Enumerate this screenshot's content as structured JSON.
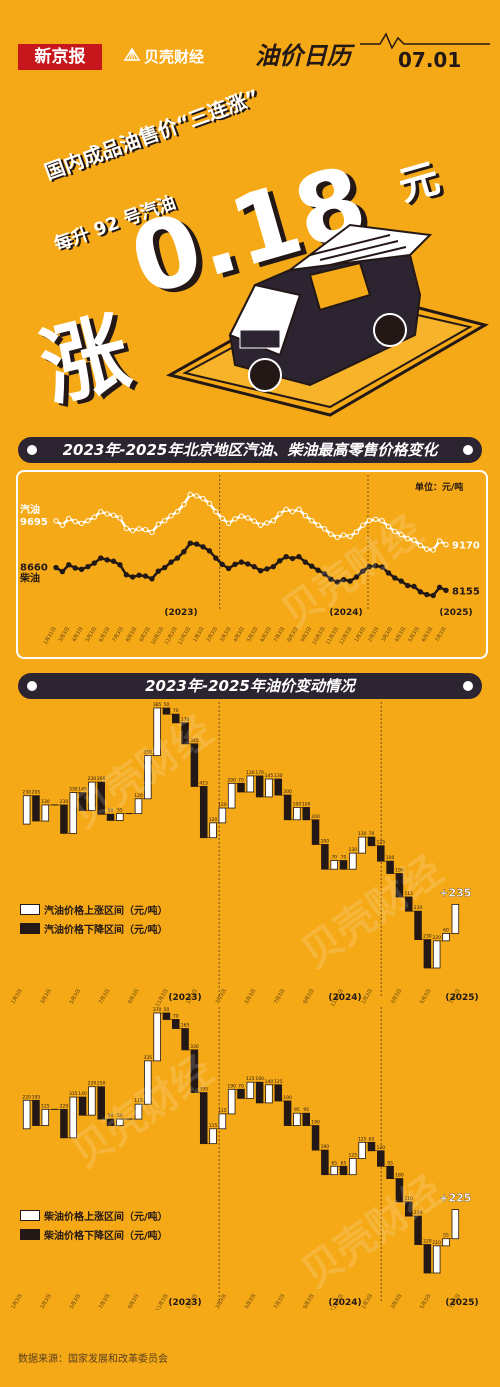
{
  "header": {
    "logo_xjb": "新京报",
    "logo_bk": "贝壳财经",
    "calendar_title": "油价日历",
    "date": "07.01"
  },
  "hero": {
    "line1": "国内成品油售价“三连涨”",
    "line2": "每升 92 号汽油",
    "big_verb": "涨",
    "big_number": "0.18",
    "big_unit": "元"
  },
  "colors": {
    "background": "#F5A916",
    "dark": "#231815",
    "bar_dark": "#2C2430",
    "white": "#FFFFFF"
  },
  "section1": {
    "title": "2023年-2025年北京地区汽油、柴油最高零售价格变化",
    "unit": "单位：元/吨"
  },
  "section2": {
    "title": "2023年-2025年油价变动情况"
  },
  "legend_gas": {
    "up": "汽油价格上涨区间（元/吨）",
    "down": "汽油价格下降区间（元/吨）"
  },
  "legend_diesel": {
    "up": "柴油价格上涨区间（元/吨）",
    "down": "柴油价格下降区间（元/吨）"
  },
  "source": "数据来源：国家发展和改革委员会",
  "watermark": "贝壳财经",
  "chart_data": [
    {
      "type": "line",
      "title": "2023年-2025年北京地区汽油、柴油最高零售价格变化",
      "unit": "单位：元/吨",
      "series": [
        {
          "name": "汽油",
          "start_label": "9695",
          "end_label": "9170",
          "values": [
            9695,
            9600,
            9745,
            9680,
            9640,
            9700,
            9780,
            9900,
            9850,
            9820,
            9760,
            9530,
            9480,
            9520,
            9500,
            9440,
            9620,
            9700,
            9810,
            9900,
            10060,
            10280,
            10250,
            10190,
            10080,
            9900,
            9750,
            9640,
            9740,
            9800,
            9760,
            9690,
            9600,
            9650,
            9700,
            9850,
            9950,
            9900,
            9950,
            9810,
            9700,
            9600,
            9520,
            9400,
            9330,
            9380,
            9350,
            9450,
            9600,
            9700,
            9730,
            9700,
            9570,
            9460,
            9390,
            9300,
            9270,
            9150,
            9070,
            9050,
            9250,
            9170
          ]
        },
        {
          "name": "柴油",
          "start_label": "8660",
          "end_label": "8155",
          "values": [
            8660,
            8570,
            8720,
            8650,
            8620,
            8680,
            8760,
            8870,
            8830,
            8800,
            8720,
            8500,
            8450,
            8490,
            8470,
            8410,
            8580,
            8660,
            8780,
            8870,
            9010,
            9200,
            9180,
            9120,
            9030,
            8870,
            8730,
            8640,
            8730,
            8780,
            8740,
            8680,
            8590,
            8630,
            8680,
            8810,
            8900,
            8860,
            8900,
            8780,
            8690,
            8600,
            8520,
            8400,
            8340,
            8390,
            8360,
            8450,
            8580,
            8680,
            8700,
            8670,
            8540,
            8430,
            8360,
            8260,
            8240,
            8120,
            8060,
            8040,
            8220,
            8155
          ]
        }
      ],
      "x_tick_labels": [
        "1月31日",
        "3月3日",
        "4月3日",
        "5月3日",
        "6月3日",
        "7月3日",
        "8月3日",
        "9月3日",
        "10月3日",
        "11月3日",
        "12月3日",
        "1月3日",
        "2月3日",
        "3月3日",
        "4月3日",
        "5月3日",
        "6月3日",
        "7月3日",
        "8月3日",
        "9月3日",
        "10月3日",
        "11月3日",
        "12月3日",
        "1月3日",
        "2月3日",
        "3月3日",
        "4月3日",
        "5月3日",
        "6月3日",
        "7月3日"
      ],
      "year_labels": [
        "(2023)",
        "(2024)",
        "(2025)"
      ]
    },
    {
      "type": "waterfall",
      "title": "汽油",
      "end_annotation": "+235",
      "legend": [
        "汽油价格上涨区间（元/吨）",
        "汽油价格下降区间（元/吨）"
      ],
      "changes": [
        230,
        -205,
        130,
        0,
        -230,
        330,
        -145,
        230,
        -260,
        -50,
        55,
        0,
        120,
        350,
        385,
        -50,
        -70,
        -170,
        -345,
        -415,
        120,
        120,
        200,
        -70,
        130,
        -170,
        145,
        -130,
        -200,
        100,
        -100,
        -200,
        -200,
        70,
        -70,
        130,
        130,
        -70,
        -125,
        -100,
        -190,
        -115,
        -230,
        -230,
        220,
        60,
        235
      ],
      "labels": [
        "230",
        "-205",
        "130",
        "-230",
        "330",
        "-145",
        "230",
        "-260",
        "-50",
        "55",
        "120",
        "350",
        "385",
        "-50",
        "-70",
        "-170",
        "-345",
        "-415",
        "120",
        "120",
        "200",
        "-70",
        "130",
        "-170",
        "145",
        "-130",
        "-200",
        "100",
        "-100",
        "-200",
        "-200",
        "70",
        "-70",
        "130",
        "130",
        "-70",
        "-125",
        "-100",
        "-190",
        "-115",
        "-230",
        "-230",
        "220",
        "60",
        "+235"
      ],
      "x_tick_labels": [
        "1月3日",
        "3月3日",
        "5月3日",
        "7月3日",
        "9月3日",
        "11月3日",
        "1月3日",
        "3月3日",
        "5月3日",
        "7月3日",
        "9月3日",
        "11月3日",
        "1月3日",
        "3月3日",
        "5月3日",
        "7月3日"
      ],
      "year_labels": [
        "(2023)",
        "(2024)",
        "(2025)"
      ]
    },
    {
      "type": "waterfall",
      "title": "柴油",
      "end_annotation": "+225",
      "legend": [
        "柴油价格上涨区间（元/吨）",
        "柴油价格下降区间（元/吨）"
      ],
      "changes": [
        220,
        -195,
        125,
        0,
        -220,
        315,
        -140,
        220,
        -250,
        -50,
        50,
        0,
        115,
        335,
        370,
        -50,
        -70,
        -165,
        -330,
        -395,
        115,
        115,
        190,
        -70,
        125,
        -160,
        140,
        -125,
        -190,
        95,
        -95,
        -190,
        -190,
        65,
        -65,
        125,
        125,
        -65,
        -120,
        -95,
        -180,
        -110,
        -220,
        -220,
        210,
        55,
        225
      ],
      "labels": [
        "220",
        "-195",
        "125",
        "-220",
        "315",
        "-140",
        "220",
        "-250",
        "-50",
        "50",
        "115",
        "335",
        "370",
        "-50",
        "-70",
        "-165",
        "-330",
        "-395",
        "115",
        "115",
        "190",
        "-70",
        "125",
        "-160",
        "140",
        "-125",
        "-190",
        "95",
        "-95",
        "-190",
        "-190",
        "65",
        "-65",
        "125",
        "125",
        "-65",
        "-120",
        "-95",
        "-180",
        "-110",
        "-220",
        "-220",
        "210",
        "55",
        "+225"
      ],
      "x_tick_labels": [
        "1月3日",
        "3月3日",
        "5月3日",
        "7月3日",
        "9月3日",
        "11月3日",
        "1月3日",
        "3月3日",
        "5月3日",
        "7月3日",
        "9月3日",
        "11月3日",
        "1月3日",
        "3月3日",
        "5月3日",
        "7月3日"
      ],
      "year_labels": [
        "(2023)",
        "(2024)",
        "(2025)"
      ]
    }
  ]
}
